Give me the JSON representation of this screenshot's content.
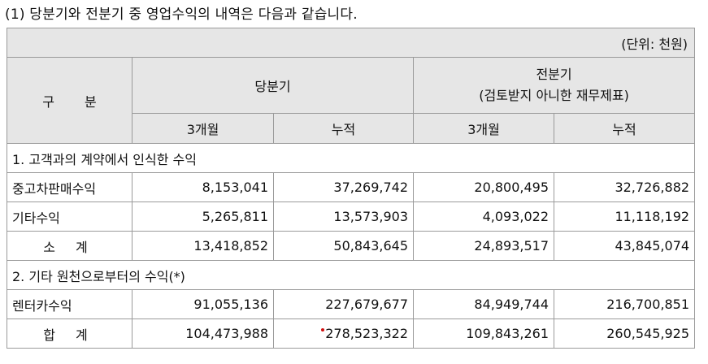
{
  "title": "(1) 당분기와 전분기 중 영업수익의 내역은 다음과 같습니다.",
  "unit": "(단위: 천원)",
  "header": {
    "category": "구 분",
    "current": "당분기",
    "previous_line1": "전분기",
    "previous_line2": "(검토받지 아니한 재무제표)",
    "sub": [
      "3개월",
      "누적",
      "3개월",
      "누적"
    ]
  },
  "sections": [
    {
      "title": "1. 고객과의 계약에서 인식한 수익",
      "rows": [
        {
          "label": "중고차판매수익",
          "values": [
            "8,153,041",
            "37,269,742",
            "20,800,495",
            "32,726,882"
          ]
        },
        {
          "label": "기타수익",
          "values": [
            "5,265,811",
            "13,573,903",
            "4,093,022",
            "11,118,192"
          ]
        },
        {
          "label": "소 계",
          "values": [
            "13,418,852",
            "50,843,645",
            "24,893,517",
            "43,845,074"
          ]
        }
      ]
    },
    {
      "title": "2. 기타 원천으로부터의 수익(*)",
      "rows": [
        {
          "label": "렌터카수익",
          "values": [
            "91,055,136",
            "227,679,677",
            "84,949,744",
            "216,700,851"
          ]
        },
        {
          "label": "합 계",
          "values": [
            "104,473,988",
            "278,523,322",
            "109,843,261",
            "260,545,925"
          ]
        }
      ]
    }
  ]
}
